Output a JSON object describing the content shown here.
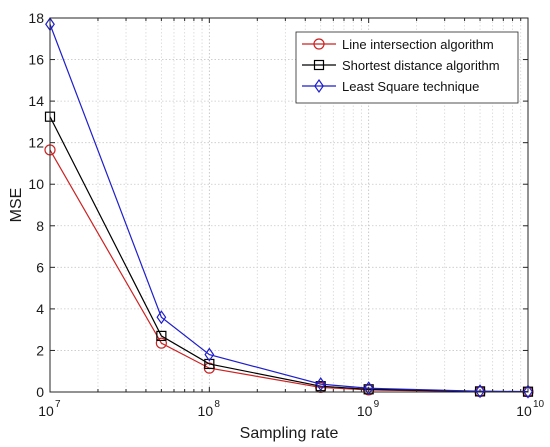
{
  "chart_data": {
    "type": "line",
    "title": "",
    "xlabel": "Sampling rate",
    "ylabel": "MSE",
    "x_scale": "log",
    "x": [
      10000000,
      50000000,
      100000000,
      500000000,
      1000000000,
      5000000000,
      10000000000
    ],
    "xlim": [
      10000000,
      10000000000
    ],
    "ylim": [
      0,
      18
    ],
    "x_ticks": [
      {
        "value": 10000000,
        "base": "10",
        "exp": "7"
      },
      {
        "value": 100000000,
        "base": "10",
        "exp": "8"
      },
      {
        "value": 1000000000,
        "base": "10",
        "exp": "9"
      },
      {
        "value": 10000000000,
        "base": "10",
        "exp": "10"
      }
    ],
    "y_ticks": [
      0,
      2,
      4,
      6,
      8,
      10,
      12,
      14,
      16,
      18
    ],
    "grid": true,
    "legend_position": "top-right",
    "series": [
      {
        "name": "Line intersection algorithm",
        "color": "#cc2222",
        "marker": "circle",
        "values": [
          11.65,
          2.35,
          1.15,
          0.22,
          0.1,
          0.02,
          0.01
        ]
      },
      {
        "name": "Shortest distance algorithm",
        "color": "#000000",
        "marker": "square",
        "values": [
          13.25,
          2.7,
          1.35,
          0.28,
          0.13,
          0.03,
          0.015
        ]
      },
      {
        "name": "Least Square technique",
        "color": "#1f1fcc",
        "marker": "diamond",
        "values": [
          17.7,
          3.6,
          1.8,
          0.38,
          0.18,
          0.04,
          0.02
        ]
      }
    ]
  }
}
